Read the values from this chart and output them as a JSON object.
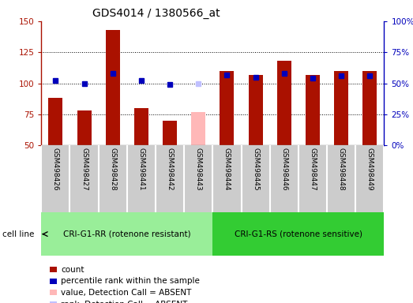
{
  "title": "GDS4014 / 1380566_at",
  "samples": [
    "GSM498426",
    "GSM498427",
    "GSM498428",
    "GSM498441",
    "GSM498442",
    "GSM498443",
    "GSM498444",
    "GSM498445",
    "GSM498446",
    "GSM498447",
    "GSM498448",
    "GSM498449"
  ],
  "count_values": [
    88,
    78,
    143,
    80,
    70,
    null,
    110,
    107,
    118,
    107,
    110,
    110
  ],
  "rank_values": [
    52,
    50,
    58,
    52,
    49,
    null,
    57,
    55,
    58,
    54,
    56,
    56
  ],
  "absent_value": 77,
  "absent_rank": 50,
  "absent_index": 5,
  "group1_label": "CRI-G1-RR (rotenone resistant)",
  "group2_label": "CRI-G1-RS (rotenone sensitive)",
  "group1_indices": [
    0,
    1,
    2,
    3,
    4,
    5
  ],
  "group2_indices": [
    6,
    7,
    8,
    9,
    10,
    11
  ],
  "ylim_left": [
    50,
    150
  ],
  "ylim_right": [
    0,
    100
  ],
  "yticks_left": [
    50,
    75,
    100,
    125,
    150
  ],
  "yticks_right": [
    0,
    25,
    50,
    75,
    100
  ],
  "bar_color_red": "#aa1100",
  "bar_color_absent": "#ffb8b8",
  "rank_color_blue": "#0000bb",
  "rank_color_absent": "#c0c0ff",
  "group1_color": "#99ee99",
  "group2_color": "#33cc33",
  "bg_color": "#cccccc",
  "legend_items": [
    {
      "color": "#aa1100",
      "label": "count"
    },
    {
      "color": "#0000bb",
      "label": "percentile rank within the sample"
    },
    {
      "color": "#ffb8b8",
      "label": "value, Detection Call = ABSENT"
    },
    {
      "color": "#c0c0ff",
      "label": "rank, Detection Call = ABSENT"
    }
  ]
}
